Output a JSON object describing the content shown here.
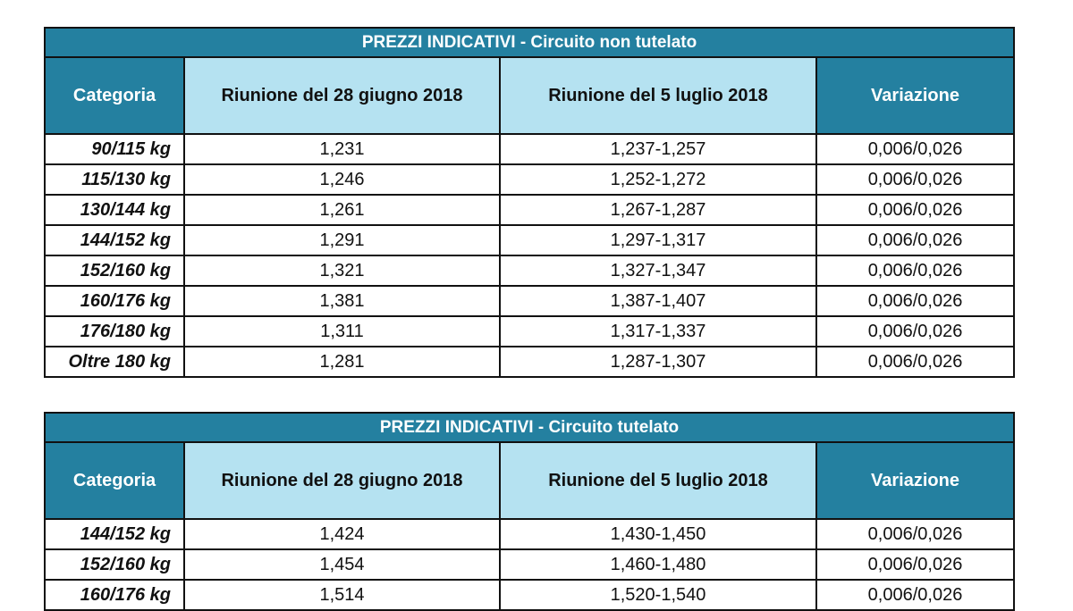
{
  "colors": {
    "header_dark": "#2480a0",
    "header_light": "#b5e2f1"
  },
  "tables": [
    {
      "title": "PREZZI INDICATIVI - Circuito non tutelato",
      "headers": [
        "Categoria",
        "Riunione del 28 giugno 2018",
        "Riunione del 5 luglio 2018",
        "Variazione"
      ],
      "rows": [
        [
          "90/115 kg",
          "1,231",
          "1,237-1,257",
          "0,006/0,026"
        ],
        [
          "115/130 kg",
          "1,246",
          "1,252-1,272",
          "0,006/0,026"
        ],
        [
          "130/144 kg",
          "1,261",
          "1,267-1,287",
          "0,006/0,026"
        ],
        [
          "144/152 kg",
          "1,291",
          "1,297-1,317",
          "0,006/0,026"
        ],
        [
          "152/160 kg",
          "1,321",
          "1,327-1,347",
          "0,006/0,026"
        ],
        [
          "160/176 kg",
          "1,381",
          "1,387-1,407",
          "0,006/0,026"
        ],
        [
          "176/180 kg",
          "1,311",
          "1,317-1,337",
          "0,006/0,026"
        ],
        [
          "Oltre 180 kg",
          "1,281",
          "1,287-1,307",
          "0,006/0,026"
        ]
      ]
    },
    {
      "title": "PREZZI INDICATIVI - Circuito tutelato",
      "headers": [
        "Categoria",
        "Riunione del 28 giugno 2018",
        "Riunione del 5 luglio 2018",
        "Variazione"
      ],
      "rows": [
        [
          "144/152 kg",
          "1,424",
          "1,430-1,450",
          "0,006/0,026"
        ],
        [
          "152/160 kg",
          "1,454",
          "1,460-1,480",
          "0,006/0,026"
        ],
        [
          "160/176 kg",
          "1,514",
          "1,520-1,540",
          "0,006/0,026"
        ]
      ]
    }
  ]
}
